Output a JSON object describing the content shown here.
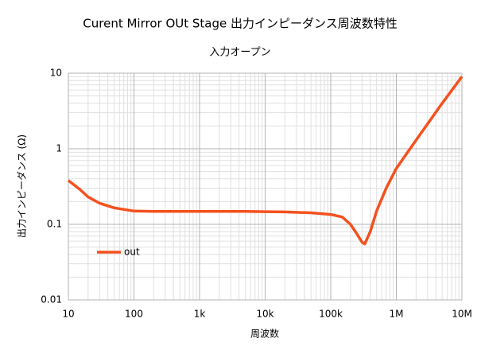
{
  "chart_data": {
    "type": "line",
    "title": "Curent Mirror OUt Stage  出力インピーダンス周波数特性",
    "subtitle": "入力オープン",
    "x_label": "周波数",
    "y_label": "出力インピーダンス (Ω)",
    "x": [
      10,
      15,
      20,
      30,
      50,
      100,
      200,
      500,
      1000,
      2000,
      5000,
      10000,
      20000,
      50000,
      100000,
      150000,
      200000,
      250000,
      300000,
      330000,
      400000,
      500000,
      700000,
      1000000,
      2000000,
      5000000,
      10000000
    ],
    "series": [
      {
        "name": "out",
        "color": "#f4511e",
        "values": [
          0.38,
          0.29,
          0.23,
          0.19,
          0.165,
          0.15,
          0.148,
          0.148,
          0.148,
          0.148,
          0.148,
          0.147,
          0.146,
          0.142,
          0.135,
          0.125,
          0.1,
          0.075,
          0.058,
          0.055,
          0.08,
          0.15,
          0.3,
          0.55,
          1.3,
          4.0,
          9.0
        ]
      }
    ],
    "x_log": true,
    "y_log": true,
    "xlim": [
      10,
      10000000
    ],
    "ylim": [
      0.01,
      10
    ],
    "xticks": [
      10,
      100,
      {
        "value": 1000,
        "label": "1k"
      },
      {
        "value": 10000,
        "label": "10k"
      },
      {
        "value": 100000,
        "label": "100k"
      },
      {
        "value": 1000000,
        "label": "1M"
      },
      {
        "value": 10000000,
        "label": "10M"
      }
    ],
    "yticks": [
      0.01,
      0.1,
      1,
      10
    ],
    "grid": true,
    "minor_grid": true,
    "legend": "lower-left"
  }
}
